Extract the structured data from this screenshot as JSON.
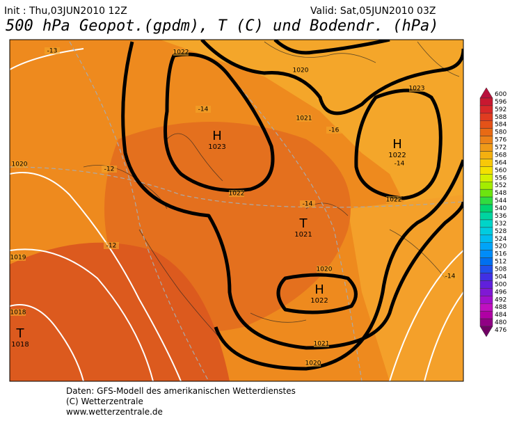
{
  "header": {
    "init": "Init : Thu,03JUN2010 12Z",
    "valid": "Valid: Sat,05JUN2010 03Z",
    "title": "500 hPa Geopot.(gpdm), T (C) und Bodendr. (hPa)"
  },
  "map": {
    "centers": [
      {
        "symbol": "H",
        "pressure": "1023"
      },
      {
        "symbol": "H",
        "pressure": "1022"
      },
      {
        "symbol": "T",
        "pressure": "1021"
      },
      {
        "symbol": "H",
        "pressure": "1022"
      },
      {
        "symbol": "T",
        "pressure": "1018"
      }
    ],
    "contour_labels": [
      "-13",
      "1022",
      "1020",
      "1023",
      "-14",
      "1021",
      "-16",
      "1020",
      "-12",
      "1022",
      "1022",
      "-14",
      "-14",
      "-12",
      "1019",
      "1020",
      "-14",
      "1018",
      "1021",
      "1020"
    ]
  },
  "colorbar": {
    "levels": [
      600,
      596,
      592,
      588,
      584,
      580,
      576,
      572,
      568,
      564,
      560,
      556,
      552,
      548,
      544,
      540,
      536,
      532,
      528,
      524,
      520,
      516,
      512,
      508,
      504,
      500,
      496,
      492,
      488,
      484,
      480,
      476
    ],
    "colors": [
      "#b8103c",
      "#c81830",
      "#d82828",
      "#e03c20",
      "#e45218",
      "#e86a14",
      "#ec8218",
      "#f09a18",
      "#f4b010",
      "#f8c808",
      "#f4e000",
      "#d4f000",
      "#a4ec00",
      "#6ce410",
      "#30dc40",
      "#00d470",
      "#00d4a0",
      "#00d4c8",
      "#00cce0",
      "#00bcf0",
      "#00a4f8",
      "#008cf8",
      "#0070f0",
      "#2050ec",
      "#4030e4",
      "#6020dc",
      "#8018d4",
      "#a010cc",
      "#c010c0",
      "#b000a4",
      "#900084",
      "#700064"
    ]
  },
  "footer": {
    "lines": [
      "Daten: GFS-Modell des amerikanischen Wetterdienstes",
      "(C) Wetterzentrale",
      "www.wetterzentrale.de"
    ]
  }
}
